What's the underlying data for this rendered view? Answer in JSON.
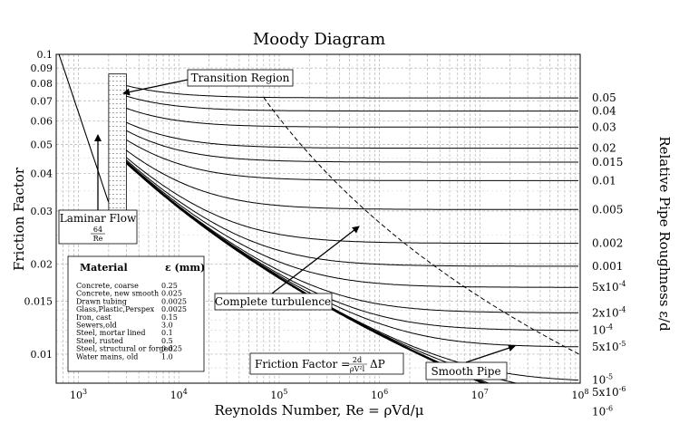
{
  "chart_data": {
    "type": "line",
    "title": "Moody Diagram",
    "xlabel": "Reynolds Number, Re = ρVd/μ",
    "ylabel": "Friction Factor",
    "right_label": "Relative Pipe Roughness ε/d",
    "x_scale": "log",
    "y_scale": "log",
    "xlim": [
      600,
      100000000
    ],
    "ylim": [
      0.008,
      0.1
    ],
    "grid": true,
    "x_ticks": [
      {
        "value": 1000,
        "label": "10³"
      },
      {
        "value": 10000,
        "label": "10⁴"
      },
      {
        "value": 100000,
        "label": "10⁵"
      },
      {
        "value": 1000000,
        "label": "10⁶"
      },
      {
        "value": 10000000,
        "label": "10⁷"
      },
      {
        "value": 100000000,
        "label": "10⁸"
      }
    ],
    "y_ticks": [
      {
        "value": 0.1,
        "label": "0.1"
      },
      {
        "value": 0.09,
        "label": "0.09"
      },
      {
        "value": 0.08,
        "label": "0.08"
      },
      {
        "value": 0.07,
        "label": "0.07"
      },
      {
        "value": 0.06,
        "label": "0.06"
      },
      {
        "value": 0.05,
        "label": "0.05"
      },
      {
        "value": 0.04,
        "label": "0.04"
      },
      {
        "value": 0.03,
        "label": "0.03"
      },
      {
        "value": 0.02,
        "label": "0.02"
      },
      {
        "value": 0.015,
        "label": "0.015"
      },
      {
        "value": 0.01,
        "label": "0.01"
      }
    ],
    "roughness_curves": [
      {
        "value": 0.05,
        "label": "0.05"
      },
      {
        "value": 0.04,
        "label": "0.04"
      },
      {
        "value": 0.03,
        "label": "0.03"
      },
      {
        "value": 0.02,
        "label": "0.02"
      },
      {
        "value": 0.015,
        "label": "0.015"
      },
      {
        "value": 0.01,
        "label": "0.01"
      },
      {
        "value": 0.005,
        "label": "0.005"
      },
      {
        "value": 0.002,
        "label": "0.002"
      },
      {
        "value": 0.001,
        "label": "0.001"
      },
      {
        "value": 0.0005,
        "label": "5x10⁻⁴"
      },
      {
        "value": 0.0002,
        "label": "2x10⁻⁴"
      },
      {
        "value": 0.0001,
        "label": "10⁻⁴"
      },
      {
        "value": 5e-05,
        "label": "5x10⁻⁵"
      },
      {
        "value": 1e-05,
        "label": "10⁻⁵"
      },
      {
        "value": 5e-06,
        "label": "5x10⁻⁶"
      },
      {
        "value": 1e-06,
        "label": "10⁻⁶"
      }
    ],
    "laminar": {
      "formula": "64/Re",
      "re_min": 600,
      "re_max": 2000
    },
    "transition_region": {
      "re_min": 2000,
      "re_max": 3000
    },
    "smooth_pipe": true,
    "complete_turbulence_line": true,
    "annotations": {
      "transition": "Transition Region",
      "laminar": "Laminar Flow",
      "laminar_num": "64",
      "laminar_den": "Re",
      "complete": "Complete turbulence",
      "friction_factor": "Friction Factor = ",
      "friction_num": "2d",
      "friction_den": "ρV²l",
      "friction_tail": "ΔP",
      "smooth": "Smooth Pipe"
    },
    "material_table": {
      "header_material": "Material",
      "header_eps": "ε (mm)",
      "rows": [
        {
          "material": "Concrete, coarse",
          "eps": "0.25"
        },
        {
          "material": "Concrete, new smooth",
          "eps": "0.025"
        },
        {
          "material": "Drawn tubing",
          "eps": "0.0025"
        },
        {
          "material": "Glass,Plastic,Perspex",
          "eps": "0.0025"
        },
        {
          "material": "Iron, cast",
          "eps": "0.15"
        },
        {
          "material": "Sewers,old",
          "eps": "3.0"
        },
        {
          "material": "Steel, mortar lined",
          "eps": "0.1"
        },
        {
          "material": "Steel, rusted",
          "eps": "0.5"
        },
        {
          "material": "Steel, structural or forged",
          "eps": "0.025"
        },
        {
          "material": "Water mains, old",
          "eps": "1.0"
        }
      ]
    }
  }
}
